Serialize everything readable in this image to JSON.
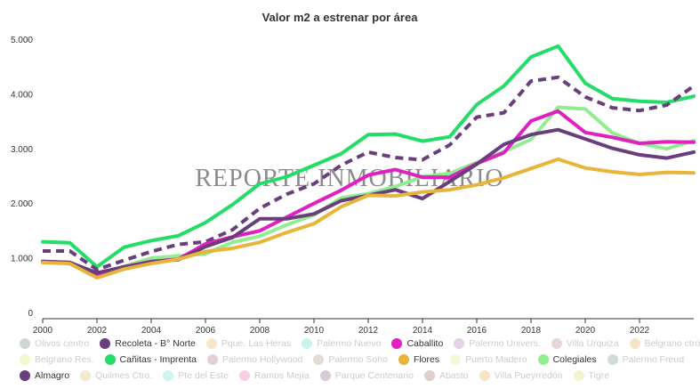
{
  "chart_data": {
    "type": "line",
    "title": "Valor m2 a estrenar por área",
    "watermark": "REPORTE INMOBILIARIO",
    "xlim": [
      2000,
      2024
    ],
    "ylim": [
      0,
      5000
    ],
    "x_ticks": [
      2000,
      2002,
      2004,
      2006,
      2008,
      2010,
      2012,
      2014,
      2016,
      2018,
      2020,
      2022
    ],
    "x_tick_labels": [
      "2000",
      "2002",
      "2004",
      "2006",
      "2008",
      "2010",
      "2012",
      "2014",
      "2016",
      "2018",
      "2020",
      "2022"
    ],
    "y_ticks": [
      0,
      1000,
      2000,
      3000,
      4000,
      5000
    ],
    "y_tick_labels": [
      "0",
      "1.000",
      "2.000",
      "3.000",
      "4.000",
      "5.000"
    ],
    "grid": "none",
    "legend_position": "bottom",
    "x": [
      2000,
      2001,
      2002,
      2003,
      2004,
      2005,
      2006,
      2007,
      2008,
      2009,
      2010,
      2011,
      2012,
      2013,
      2014,
      2015,
      2016,
      2017,
      2018,
      2019,
      2020,
      2021,
      2022,
      2023,
      2024
    ],
    "series": [
      {
        "name": "Cañitas - Imprenta",
        "color": "#22dd66",
        "dashed": false,
        "values": [
          1310,
          1290,
          850,
          1210,
          1330,
          1420,
          1660,
          1990,
          2370,
          2500,
          2710,
          2920,
          3270,
          3280,
          3150,
          3230,
          3820,
          4160,
          4690,
          4890,
          4210,
          3930,
          3880,
          3860,
          3970
        ]
      },
      {
        "name": "Recoleta - B° Norte",
        "color": "#6a3d7c",
        "dashed": true,
        "values": [
          1140,
          1140,
          800,
          970,
          1130,
          1260,
          1310,
          1530,
          1920,
          2180,
          2370,
          2710,
          2950,
          2850,
          2810,
          3080,
          3590,
          3670,
          4250,
          4320,
          3960,
          3760,
          3710,
          3810,
          4160
        ]
      },
      {
        "name": "Colegiales",
        "color": "#90ee90",
        "dashed": false,
        "values": [
          930,
          920,
          690,
          860,
          1010,
          1050,
          1090,
          1300,
          1410,
          1620,
          1800,
          2110,
          2190,
          2320,
          2500,
          2560,
          2760,
          2960,
          3180,
          3770,
          3740,
          3300,
          3110,
          3010,
          3160
        ]
      },
      {
        "name": "Caballito",
        "color": "#e020c0",
        "dashed": false,
        "values": [
          950,
          930,
          700,
          850,
          950,
          990,
          1270,
          1400,
          1510,
          1760,
          2010,
          2250,
          2530,
          2630,
          2490,
          2490,
          2740,
          2940,
          3520,
          3700,
          3310,
          3220,
          3110,
          3140,
          3130
        ]
      },
      {
        "name": "Almagro",
        "color": "#6a3d7c",
        "dashed": false,
        "values": [
          950,
          930,
          740,
          850,
          940,
          980,
          1220,
          1390,
          1730,
          1730,
          1820,
          2060,
          2160,
          2260,
          2100,
          2410,
          2730,
          3090,
          3270,
          3360,
          3190,
          3020,
          2900,
          2840,
          2950
        ]
      },
      {
        "name": "Flores",
        "color": "#e6b53a",
        "dashed": false,
        "values": [
          930,
          910,
          650,
          810,
          910,
          990,
          1130,
          1190,
          1300,
          1480,
          1640,
          1950,
          2160,
          2150,
          2220,
          2260,
          2350,
          2480,
          2650,
          2820,
          2660,
          2590,
          2540,
          2580,
          2570
        ]
      }
    ],
    "legend": [
      [
        {
          "label": "Olivos centro",
          "color": "#cfd8d4",
          "shown": false
        },
        {
          "label": "Recoleta - B° Norte",
          "color": "#6a3d7c",
          "shown": true
        },
        {
          "label": "Pque. Las Heras",
          "color": "#f7e7c8",
          "shown": false
        },
        {
          "label": "Palermo Nuevo",
          "color": "#c9f3ec",
          "shown": false
        },
        {
          "label": "Caballito",
          "color": "#e020c0",
          "shown": true
        },
        {
          "label": "Palermo Univers.",
          "color": "#e4d2e6",
          "shown": false
        },
        {
          "label": "Villa Urquiza",
          "color": "#e7d6d6",
          "shown": false
        },
        {
          "label": "Belgrano ctro.",
          "color": "#f3e5cc",
          "shown": false
        }
      ],
      [
        {
          "label": "Belgrano Res.",
          "color": "#eff9cf",
          "shown": false
        },
        {
          "label": "Cañitas - Imprenta",
          "color": "#22dd66",
          "shown": true
        },
        {
          "label": "Palermo Hollywood",
          "color": "#e2cfd9",
          "shown": false
        },
        {
          "label": "Palermo Soho",
          "color": "#e3dcd3",
          "shown": false
        },
        {
          "label": "Flores",
          "color": "#e6b53a",
          "shown": true
        },
        {
          "label": "Puerto Madero",
          "color": "#f6f6d7",
          "shown": false
        },
        {
          "label": "Colegiales",
          "color": "#90ee90",
          "shown": true
        },
        {
          "label": "Palermo Freud",
          "color": "#cfdcd7",
          "shown": false
        }
      ],
      [
        {
          "label": "Almagro",
          "color": "#6a3d7c",
          "shown": true
        },
        {
          "label": "Quilmes Ctro.",
          "color": "#f7e6d2",
          "shown": false
        },
        {
          "label": "Pte del Este",
          "color": "#cdf3f3",
          "shown": false
        },
        {
          "label": "Ramos Mejía",
          "color": "#f6cfe6",
          "shown": false
        },
        {
          "label": "Parque Centenario",
          "color": "#dbc9d8",
          "shown": false
        },
        {
          "label": "Abasto",
          "color": "#dfd0c9",
          "shown": false
        },
        {
          "label": "Villa Pueyrredón",
          "color": "#f7e4c6",
          "shown": false
        },
        {
          "label": "Tigre",
          "color": "#f3f3d2",
          "shown": false
        }
      ]
    ]
  }
}
